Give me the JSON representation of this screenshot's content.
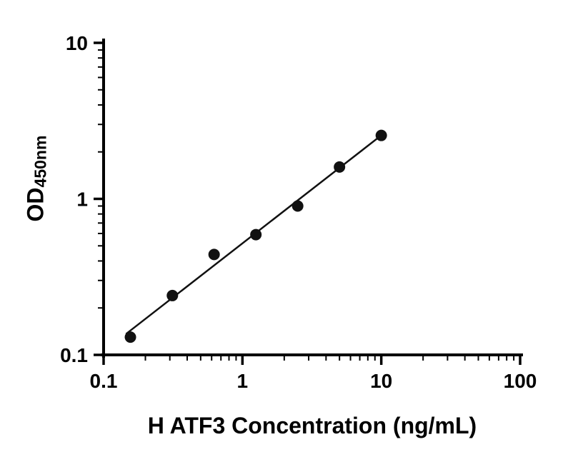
{
  "chart_data": {
    "type": "scatter",
    "title": "",
    "xlabel": "H ATF3 Concentration (ng/mL)",
    "ylabel_main": "OD",
    "ylabel_sub": "450nm",
    "x_scale": "log",
    "y_scale": "log",
    "xlim": [
      0.1,
      100
    ],
    "ylim": [
      0.1,
      10
    ],
    "x_ticks": [
      0.1,
      1,
      10,
      100
    ],
    "x_tick_labels": [
      "0.1",
      "1",
      "10",
      "100"
    ],
    "y_ticks": [
      0.1,
      1,
      10
    ],
    "y_tick_labels": [
      "0.1",
      "1",
      "10"
    ],
    "grid": false,
    "legend": "none",
    "points": [
      {
        "x": 0.156,
        "y": 0.13
      },
      {
        "x": 0.313,
        "y": 0.24
      },
      {
        "x": 0.625,
        "y": 0.44
      },
      {
        "x": 1.25,
        "y": 0.59
      },
      {
        "x": 2.5,
        "y": 0.9
      },
      {
        "x": 5,
        "y": 1.6
      },
      {
        "x": 10,
        "y": 2.55
      }
    ],
    "trendline": {
      "fit": "linear-loglog",
      "x_start": 0.145,
      "x_end": 10.4
    },
    "marker": {
      "shape": "circle",
      "color": "#111111",
      "radius": 8
    },
    "line_color": "#111111",
    "axis_color": "#000000"
  }
}
